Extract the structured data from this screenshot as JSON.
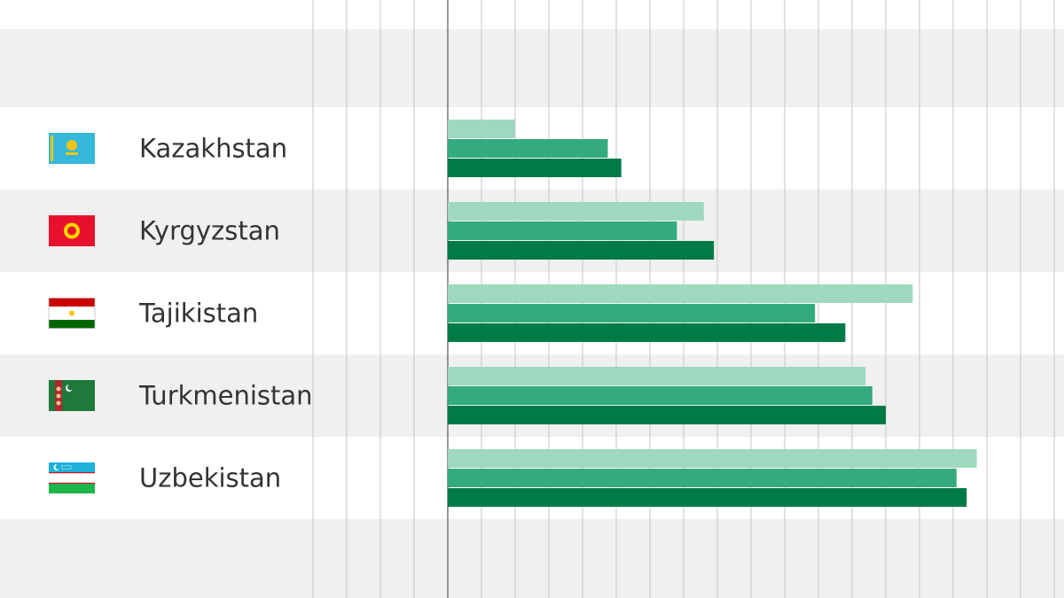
{
  "chart_data": {
    "type": "bar",
    "orientation": "horizontal",
    "categories": [
      "Kazakhstan",
      "Kyrgyzstan",
      "Tajikistan",
      "Turkmenistan",
      "Uzbekistan"
    ],
    "category_icons": [
      "kazakhstan-flag-icon",
      "kyrgyzstan-flag-icon",
      "tajikistan-flag-icon",
      "turkmenistan-flag-icon",
      "uzbekistan-flag-icon"
    ],
    "series": [
      {
        "values": [
          2.0,
          7.6,
          13.8,
          12.4,
          15.7
        ],
        "color": "#9ed8bf"
      },
      {
        "values": [
          4.75,
          6.8,
          10.9,
          12.6,
          15.1
        ],
        "color": "#34ab7c"
      },
      {
        "values": [
          5.15,
          7.9,
          11.8,
          13.0,
          15.4
        ],
        "color": "#007a46"
      }
    ],
    "xlim": [
      -4,
      18
    ],
    "grid": true,
    "legend": "none",
    "title": "",
    "xlabel": "",
    "ylabel": ""
  },
  "colors": {
    "band": "#f0f0f0",
    "grid": "#c6c6c6",
    "axis": "#555555",
    "label": "#333333"
  }
}
